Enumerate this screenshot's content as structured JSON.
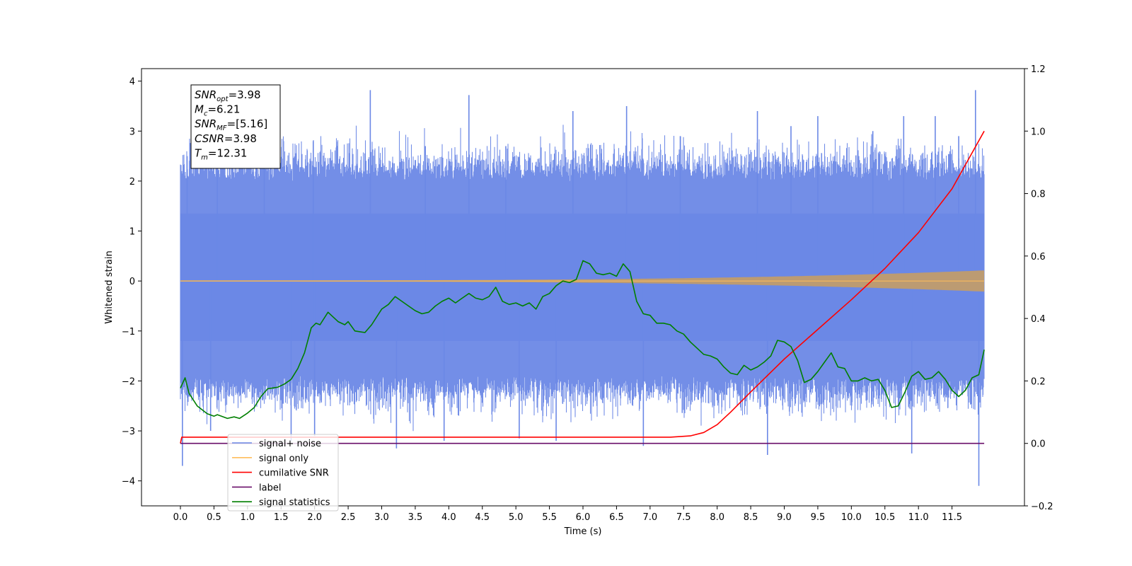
{
  "chart_data": {
    "type": "line",
    "xlabel": "Time (s)",
    "ylabel": "Whitened strain",
    "xlim": [
      -0.58,
      12.58
    ],
    "ylim_left": [
      -4.5,
      4.25
    ],
    "ylim_right": [
      -0.2,
      1.2
    ],
    "x_ticks": [
      0.0,
      0.5,
      1.0,
      1.5,
      2.0,
      2.5,
      3.0,
      3.5,
      4.0,
      4.5,
      5.0,
      5.5,
      6.0,
      6.5,
      7.0,
      7.5,
      8.0,
      8.5,
      9.0,
      9.5,
      10.0,
      10.5,
      11.0,
      11.5
    ],
    "x_tick_labels": [
      "0.0",
      "0.5",
      "1.0",
      "1.5",
      "2.0",
      "2.5",
      "3.0",
      "3.5",
      "4.0",
      "4.5",
      "5.0",
      "5.5",
      "6.0",
      "6.5",
      "7.0",
      "7.5",
      "8.0",
      "8.5",
      "9.0",
      "9.5",
      "10.0",
      "10.5",
      "11.0",
      "11.5"
    ],
    "y_left_ticks": [
      -4,
      -3,
      -2,
      -1,
      0,
      1,
      2,
      3,
      4
    ],
    "y_left_tick_labels": [
      "−4",
      "−3",
      "−2",
      "−1",
      "0",
      "1",
      "2",
      "3",
      "4"
    ],
    "y_right_ticks": [
      -0.2,
      0.0,
      0.2,
      0.4,
      0.6,
      0.8,
      1.0,
      1.2
    ],
    "y_right_tick_labels": [
      "−0.2",
      "0.0",
      "0.2",
      "0.4",
      "0.6",
      "0.8",
      "1.0",
      "1.2"
    ],
    "grid": false,
    "legend_position": "bottom-left",
    "annotation": {
      "lines": [
        {
          "base": "SNR",
          "sub": "opt",
          "rest": "=3.98"
        },
        {
          "base": "M",
          "sub": "c",
          "rest": "=6.21"
        },
        {
          "base": "SNR",
          "sub": "MF",
          "rest": "=[5.16]"
        },
        {
          "base": "CSNR",
          "sub": "",
          "rest": "=3.98"
        },
        {
          "base": "T",
          "sub": "m",
          "rest": "=12.31"
        }
      ]
    },
    "series": [
      {
        "name": "signal+ noise",
        "axis": "left",
        "color": "#6b88e6",
        "kind": "noise",
        "x_range": [
          0.0,
          11.98
        ],
        "typical_envelope": [
          -1.9,
          2.0
        ],
        "spikes": [
          {
            "x": 0.03,
            "y": -3.7
          },
          {
            "x": 0.1,
            "y": 2.5
          },
          {
            "x": 0.45,
            "y": -3.0
          },
          {
            "x": 0.55,
            "y": 2.9
          },
          {
            "x": 1.25,
            "y": 2.7
          },
          {
            "x": 1.65,
            "y": -3.2
          },
          {
            "x": 1.98,
            "y": 2.8
          },
          {
            "x": 2.0,
            "y": -3.1
          },
          {
            "x": 2.83,
            "y": 3.82
          },
          {
            "x": 3.22,
            "y": -3.35
          },
          {
            "x": 3.65,
            "y": 2.7
          },
          {
            "x": 3.93,
            "y": -3.2
          },
          {
            "x": 4.3,
            "y": 3.72
          },
          {
            "x": 4.85,
            "y": 2.7
          },
          {
            "x": 5.05,
            "y": -3.15
          },
          {
            "x": 5.6,
            "y": -3.2
          },
          {
            "x": 5.85,
            "y": 3.4
          },
          {
            "x": 6.65,
            "y": 3.5
          },
          {
            "x": 6.9,
            "y": -3.3
          },
          {
            "x": 7.45,
            "y": 2.9
          },
          {
            "x": 8.6,
            "y": 3.4
          },
          {
            "x": 8.75,
            "y": -3.48
          },
          {
            "x": 9.1,
            "y": 3.1
          },
          {
            "x": 9.5,
            "y": 3.3
          },
          {
            "x": 10.32,
            "y": 3.0
          },
          {
            "x": 10.78,
            "y": 3.3
          },
          {
            "x": 10.9,
            "y": -3.45
          },
          {
            "x": 11.25,
            "y": 3.3
          },
          {
            "x": 11.6,
            "y": 2.9
          },
          {
            "x": 11.85,
            "y": 3.82
          },
          {
            "x": 11.9,
            "y": -4.1
          }
        ]
      },
      {
        "name": "signal only",
        "axis": "left",
        "color": "#ffbe5c",
        "kind": "chirp",
        "x_range": [
          0.0,
          11.98
        ],
        "final_amplitude": 0.2,
        "fill_color": "#bc9b72"
      },
      {
        "name": "cumilative SNR",
        "axis": "right",
        "color": "#ff0000",
        "x": [
          0.0,
          0.02,
          7.3,
          7.6,
          7.8,
          8.0,
          8.2,
          8.5,
          9.0,
          9.5,
          10.0,
          10.5,
          11.0,
          11.5,
          11.98
        ],
        "y": [
          0.0,
          0.02,
          0.02,
          0.024,
          0.035,
          0.06,
          0.1,
          0.165,
          0.27,
          0.365,
          0.46,
          0.56,
          0.675,
          0.815,
          1.0
        ]
      },
      {
        "name": "label",
        "axis": "right",
        "color": "#6a0f6a",
        "x": [
          0.0,
          11.98
        ],
        "y": [
          0.0,
          0.0
        ]
      },
      {
        "name": "signal statistics",
        "axis": "right",
        "color": "#007f00",
        "x": [
          0.0,
          0.07,
          0.13,
          0.25,
          0.4,
          0.5,
          0.55,
          0.7,
          0.8,
          0.88,
          1.0,
          1.1,
          1.2,
          1.3,
          1.45,
          1.55,
          1.65,
          1.75,
          1.85,
          1.95,
          2.02,
          2.08,
          2.2,
          2.35,
          2.45,
          2.5,
          2.6,
          2.75,
          2.85,
          3.0,
          3.1,
          3.2,
          3.3,
          3.4,
          3.5,
          3.6,
          3.7,
          3.8,
          3.9,
          4.0,
          4.1,
          4.2,
          4.3,
          4.4,
          4.5,
          4.6,
          4.7,
          4.8,
          4.9,
          5.0,
          5.1,
          5.2,
          5.3,
          5.4,
          5.5,
          5.6,
          5.7,
          5.8,
          5.9,
          6.0,
          6.1,
          6.2,
          6.3,
          6.4,
          6.5,
          6.6,
          6.7,
          6.8,
          6.9,
          7.0,
          7.1,
          7.2,
          7.3,
          7.4,
          7.5,
          7.6,
          7.7,
          7.8,
          7.9,
          8.0,
          8.1,
          8.2,
          8.3,
          8.4,
          8.5,
          8.6,
          8.7,
          8.8,
          8.9,
          9.0,
          9.1,
          9.2,
          9.3,
          9.4,
          9.5,
          9.6,
          9.7,
          9.8,
          9.9,
          10.0,
          10.1,
          10.2,
          10.3,
          10.4,
          10.5,
          10.6,
          10.7,
          10.8,
          10.9,
          11.0,
          11.1,
          11.2,
          11.3,
          11.4,
          11.5,
          11.6,
          11.7,
          11.8,
          11.9,
          11.98
        ],
        "y": [
          0.177,
          0.21,
          0.16,
          0.12,
          0.095,
          0.087,
          0.092,
          0.08,
          0.085,
          0.08,
          0.097,
          0.115,
          0.15,
          0.175,
          0.18,
          0.19,
          0.205,
          0.24,
          0.29,
          0.37,
          0.385,
          0.38,
          0.42,
          0.39,
          0.38,
          0.39,
          0.36,
          0.355,
          0.38,
          0.43,
          0.445,
          0.47,
          0.455,
          0.44,
          0.425,
          0.415,
          0.42,
          0.44,
          0.455,
          0.465,
          0.45,
          0.465,
          0.48,
          0.465,
          0.46,
          0.47,
          0.5,
          0.455,
          0.445,
          0.45,
          0.44,
          0.45,
          0.43,
          0.47,
          0.48,
          0.505,
          0.52,
          0.515,
          0.525,
          0.585,
          0.575,
          0.545,
          0.54,
          0.545,
          0.535,
          0.575,
          0.55,
          0.455,
          0.415,
          0.41,
          0.385,
          0.385,
          0.38,
          0.36,
          0.35,
          0.325,
          0.305,
          0.285,
          0.28,
          0.27,
          0.245,
          0.225,
          0.22,
          0.25,
          0.235,
          0.245,
          0.26,
          0.28,
          0.33,
          0.325,
          0.31,
          0.265,
          0.195,
          0.205,
          0.23,
          0.26,
          0.29,
          0.245,
          0.24,
          0.2,
          0.2,
          0.21,
          0.2,
          0.205,
          0.17,
          0.115,
          0.12,
          0.165,
          0.215,
          0.23,
          0.205,
          0.21,
          0.23,
          0.205,
          0.17,
          0.15,
          0.17,
          0.21,
          0.22,
          0.3
        ]
      }
    ]
  }
}
